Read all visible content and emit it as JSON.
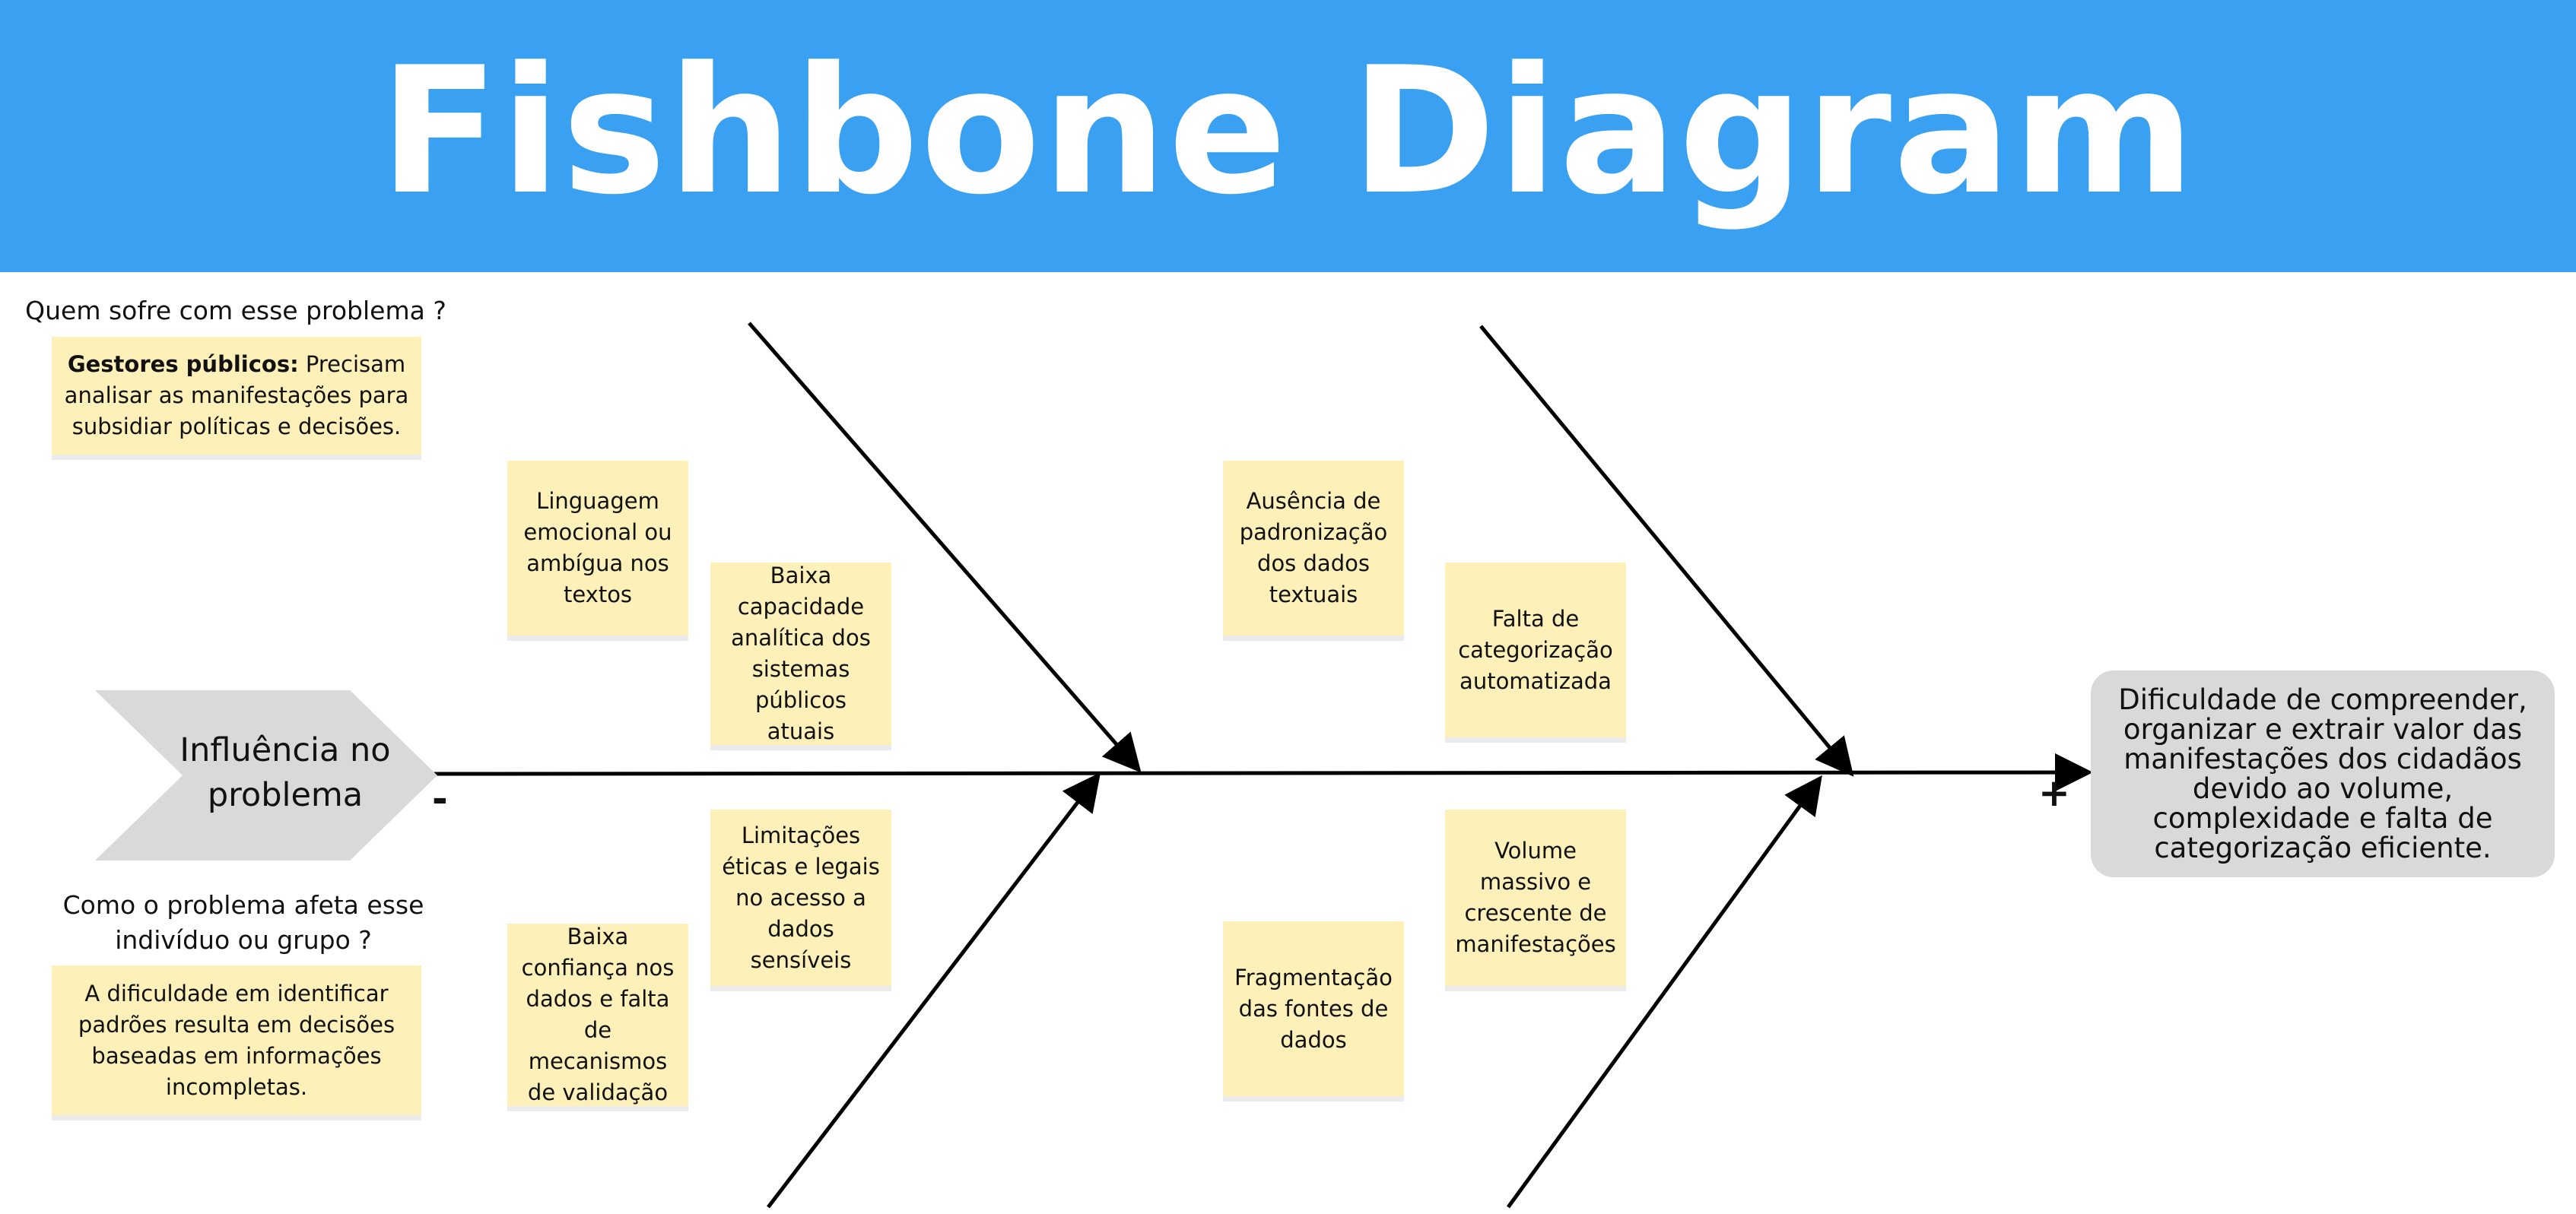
{
  "header": {
    "title": "Fishbone Diagram"
  },
  "colors": {
    "header_bg": "#3aa0f2",
    "sticky_note": "#fdf0b8",
    "effect_box": "#d9d9d9",
    "chevron": "#d9d9d9"
  },
  "who_section": {
    "question": "Quem sofre com esse problema ?",
    "answer_bold": "Gestores públicos:",
    "answer_text": " Precisam analisar as manifestações para subsidiar políticas e decisões."
  },
  "impact_section": {
    "question": "Como o problema afeta esse indivíduo ou grupo ?",
    "answer": "A dificuldade em identificar padrões resulta em decisões baseadas em informações incompletas."
  },
  "spine": {
    "start_label": "Influência no problema",
    "minus_sign": "-",
    "plus_sign": "+",
    "effect": "Dificuldade de compreender, organizar e extrair valor das manifestações dos cidadãos devido ao volume, complexidade e falta de categorização eficiente."
  },
  "causes": {
    "top_left": [
      "Linguagem emocional ou ambígua nos textos",
      "Baixa capacidade analítica dos sistemas públicos atuais"
    ],
    "top_right": [
      "Ausência de padronização dos dados textuais",
      "Falta de categorização automatizada"
    ],
    "bottom_left": [
      "Baixa confiança nos dados e falta de mecanismos de validação",
      "Limitações éticas e legais no acesso a dados sensíveis"
    ],
    "bottom_right": [
      "Fragmentação das fontes de dados",
      "Volume massivo e crescente de manifestações"
    ]
  }
}
